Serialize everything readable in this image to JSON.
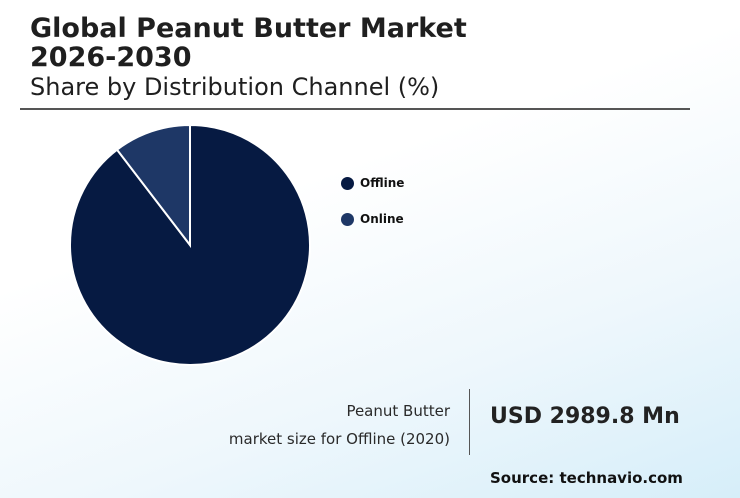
{
  "header": {
    "title_line1": "Global Peanut Butter Market",
    "title_line2": "2026-2030",
    "subtitle": "Share by Distribution Channel (%)"
  },
  "chart_data": {
    "type": "pie",
    "slices": [
      {
        "label": "Offline",
        "value": 89.6,
        "color": "#061a42"
      },
      {
        "label": "Online",
        "value": 10.4,
        "color": "#1e3766"
      }
    ]
  },
  "market_size": {
    "label_line1": "Peanut Butter",
    "label_line2": "market size for Offline (2020)",
    "value": "USD 2989.8 Mn"
  },
  "source": "Source: technavio.com"
}
